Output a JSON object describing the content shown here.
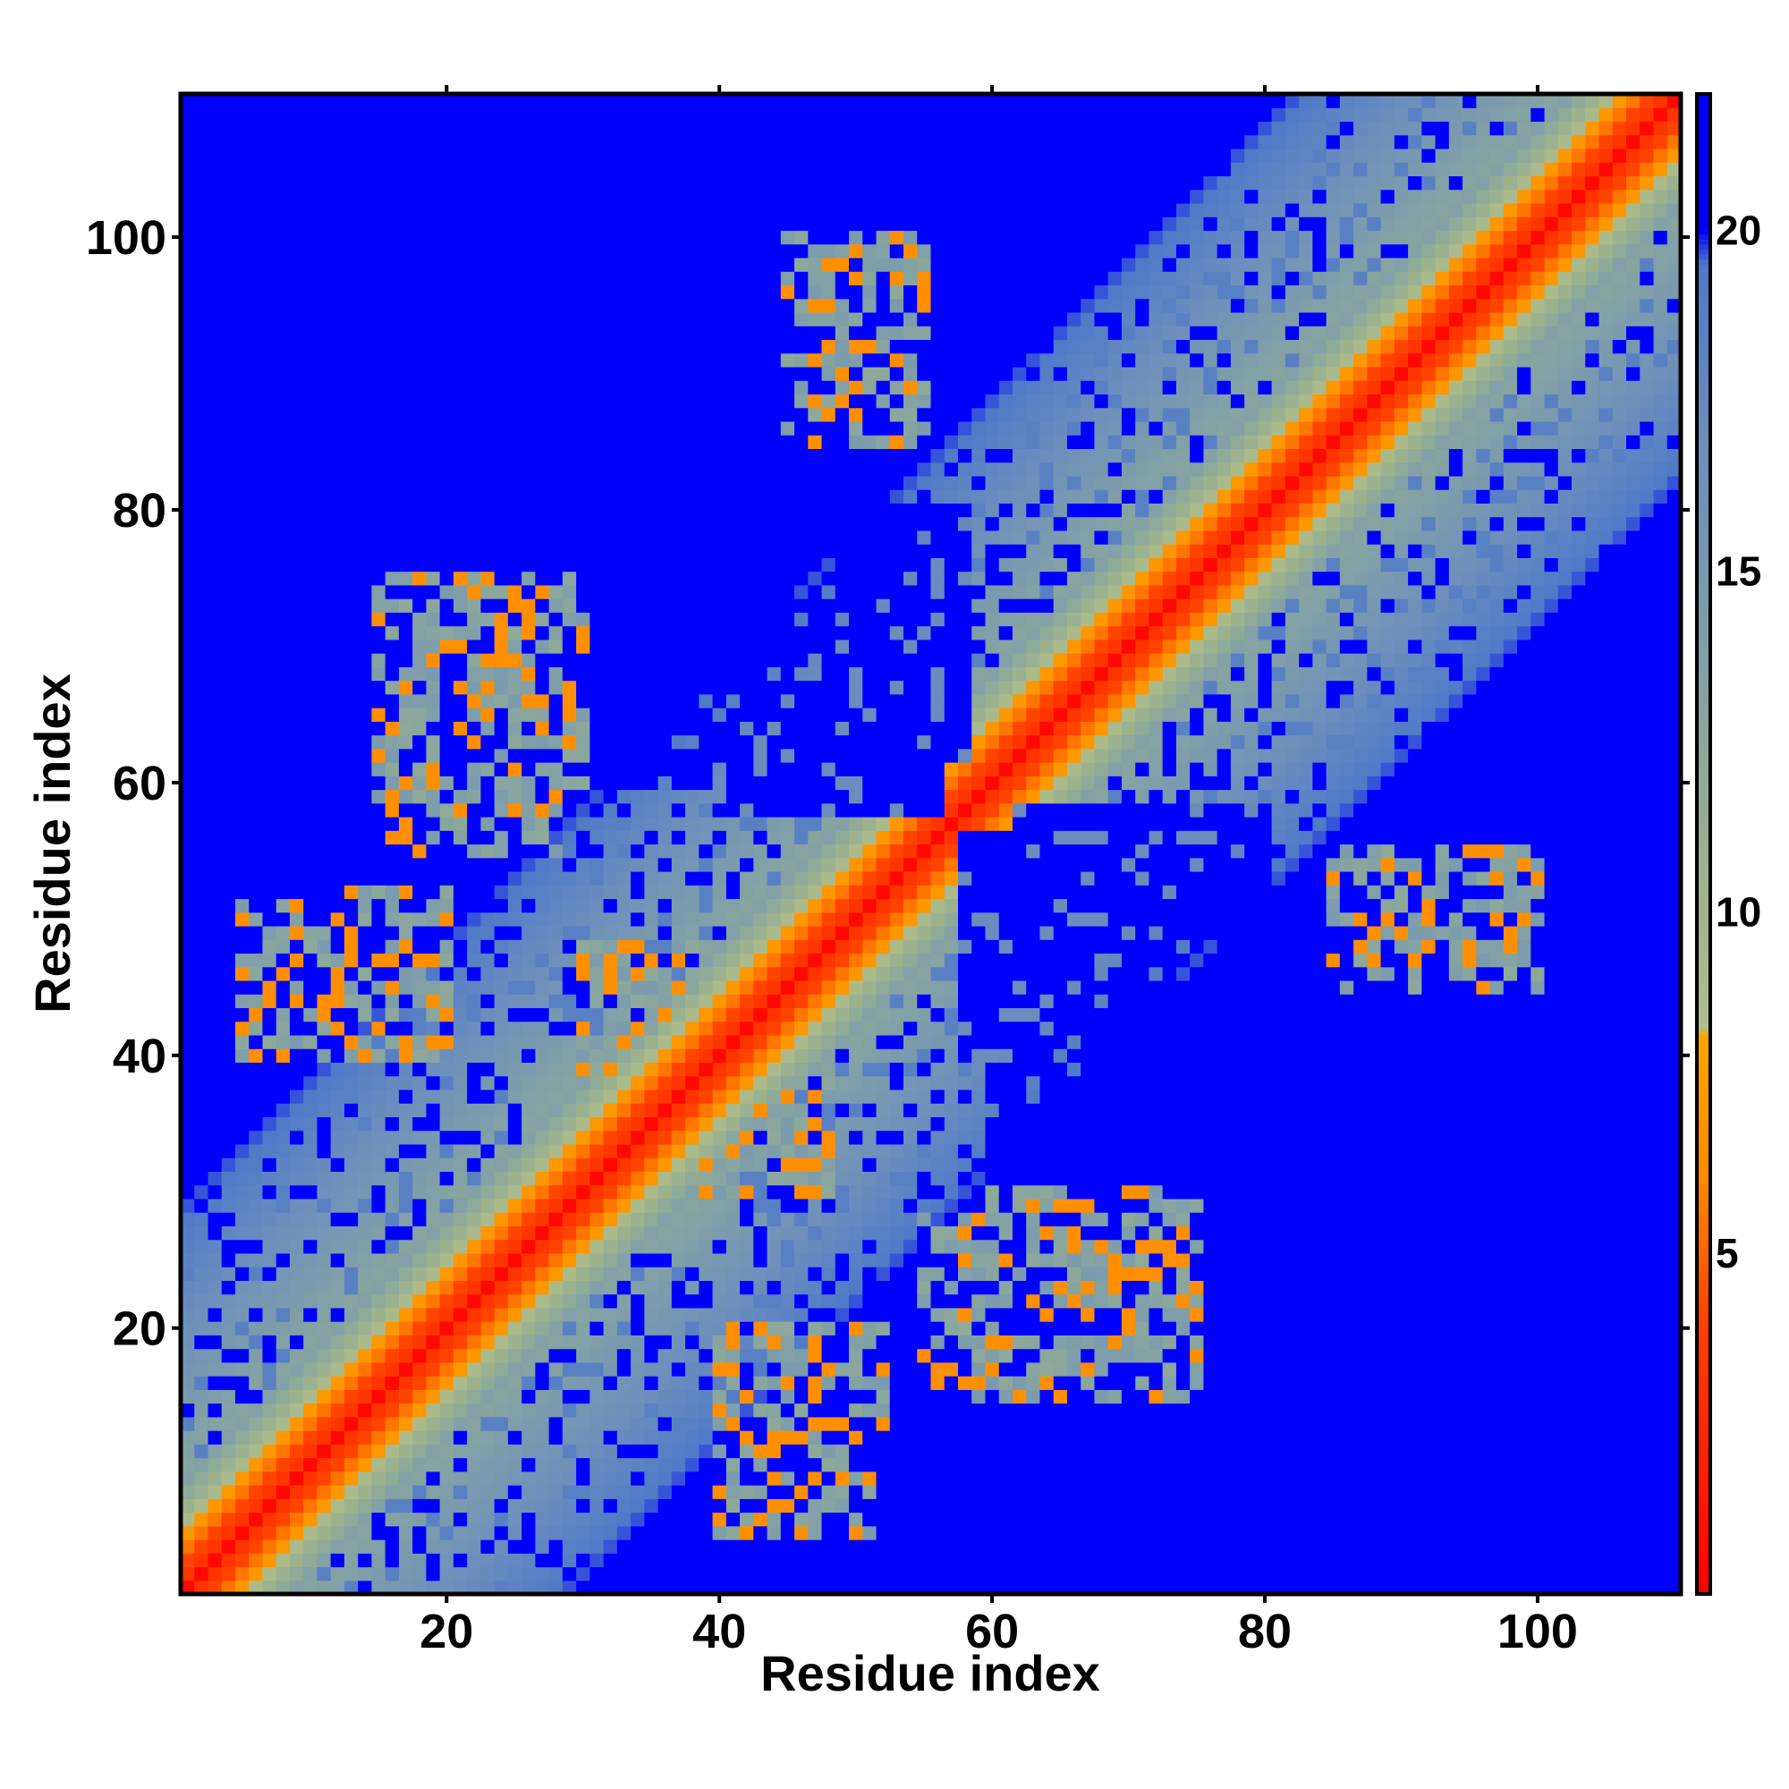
{
  "chart_data": {
    "type": "heatmap",
    "title": "",
    "xlabel": "Residue index",
    "ylabel": "Residue index",
    "n_residues": 110,
    "xlim": [
      0.5,
      110.5
    ],
    "ylim": [
      0.5,
      110.5
    ],
    "x_ticks": [
      20,
      40,
      60,
      80,
      100
    ],
    "y_ticks": [
      20,
      40,
      60,
      80,
      100
    ],
    "x_tick_labels": [
      "20",
      "40",
      "60",
      "80",
      "100"
    ],
    "y_tick_labels": [
      "20",
      "40",
      "60",
      "80",
      "100"
    ],
    "colorbar": {
      "range": [
        0,
        22
      ],
      "ticks": [
        5,
        10,
        15,
        20
      ],
      "tick_labels": [
        "5",
        "10",
        "15",
        "20"
      ],
      "stops": [
        {
          "value": 0,
          "color": "#ff0000"
        },
        {
          "value": 4,
          "color": "#ff4000"
        },
        {
          "value": 6,
          "color": "#ff8800"
        },
        {
          "value": 8.2,
          "color": "#ffa500"
        },
        {
          "value": 8.3,
          "color": "#b2bd8a"
        },
        {
          "value": 11,
          "color": "#97b08f"
        },
        {
          "value": 14,
          "color": "#7f9eaa"
        },
        {
          "value": 17,
          "color": "#6a8dbe"
        },
        {
          "value": 19.5,
          "color": "#4f78c8"
        },
        {
          "value": 20,
          "color": "#0000ff"
        },
        {
          "value": 22,
          "color": "#0000ff"
        }
      ]
    },
    "values": "110x110 pairwise inter-residue distance matrix (Angstrom-like units); symmetric; near-zero on the diagonal (red), contact band of orange/yellow-green along the diagonal, mid-range distances shown blue-gray/green, distances >= 20 saturated blue. Large far-distance (blue) blocks: residues 1-35 vs 60-110, residues 40-55 vs 58-70, residues 60-75 vs 28-40, residues 80-110 vs 1-30. Off-diagonal contact clusters near (5-20, 40-52), (22-30, 60-75), (45-55, 90-100), (85-95, 45-55), (55-75, 15-28)."
  }
}
